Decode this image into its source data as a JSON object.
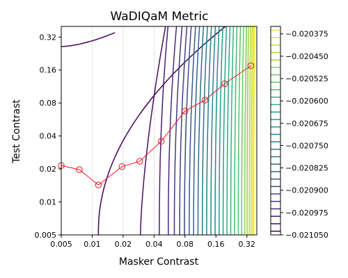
{
  "chart_data": {
    "type": "contour",
    "title": "WaDIQaM Metric",
    "xlabel": "Masker Contrast",
    "ylabel": "Test Contrast",
    "xscale": "log",
    "yscale": "log",
    "xlim": [
      0.005,
      0.4
    ],
    "ylim": [
      0.005,
      0.4
    ],
    "x_ticks": [
      {
        "value": 0.005,
        "label": "0.005"
      },
      {
        "value": 0.01,
        "label": "0.01"
      },
      {
        "value": 0.02,
        "label": "0.02"
      },
      {
        "value": 0.04,
        "label": "0.04"
      },
      {
        "value": 0.08,
        "label": "0.08"
      },
      {
        "value": 0.16,
        "label": "0.16"
      },
      {
        "value": 0.32,
        "label": "0.32"
      }
    ],
    "y_ticks": [
      {
        "value": 0.005,
        "label": "0.005"
      },
      {
        "value": 0.01,
        "label": "0.01"
      },
      {
        "value": 0.02,
        "label": "0.02"
      },
      {
        "value": 0.04,
        "label": "0.04"
      },
      {
        "value": 0.08,
        "label": "0.08"
      },
      {
        "value": 0.16,
        "label": "0.16"
      },
      {
        "value": 0.32,
        "label": "0.32"
      }
    ],
    "grid": true,
    "colormap": "viridis",
    "colorbar": {
      "min": -0.02105,
      "max": -0.02035,
      "ticks": [
        {
          "value": -0.020375,
          "label": "−0.020375"
        },
        {
          "value": -0.02045,
          "label": "−0.020450"
        },
        {
          "value": -0.020525,
          "label": "−0.020525"
        },
        {
          "value": -0.0206,
          "label": "−0.020600"
        },
        {
          "value": -0.020675,
          "label": "−0.020675"
        },
        {
          "value": -0.02075,
          "label": "−0.020750"
        },
        {
          "value": -0.020825,
          "label": "−0.020825"
        },
        {
          "value": -0.0209,
          "label": "−0.020900"
        },
        {
          "value": -0.020975,
          "label": "−0.020975"
        },
        {
          "value": -0.02105,
          "label": "−0.021050"
        }
      ],
      "levels": 28
    },
    "contour_levels_x": [
      0.0115,
      0.0295,
      0.045,
      0.055,
      0.063,
      0.071,
      0.079,
      0.088,
      0.097,
      0.107,
      0.118,
      0.13,
      0.143,
      0.157,
      0.172,
      0.188,
      0.205,
      0.223,
      0.243,
      0.264,
      0.285,
      0.305,
      0.322,
      0.338,
      0.352,
      0.364,
      0.375
    ],
    "threshold_series": {
      "color": "#e8141c",
      "x": [
        0.005,
        0.0075,
        0.0115,
        0.0195,
        0.029,
        0.047,
        0.08,
        0.125,
        0.195,
        0.35
      ],
      "y": [
        0.0215,
        0.0197,
        0.0143,
        0.021,
        0.0235,
        0.0358,
        0.0675,
        0.085,
        0.12,
        0.175
      ]
    }
  }
}
